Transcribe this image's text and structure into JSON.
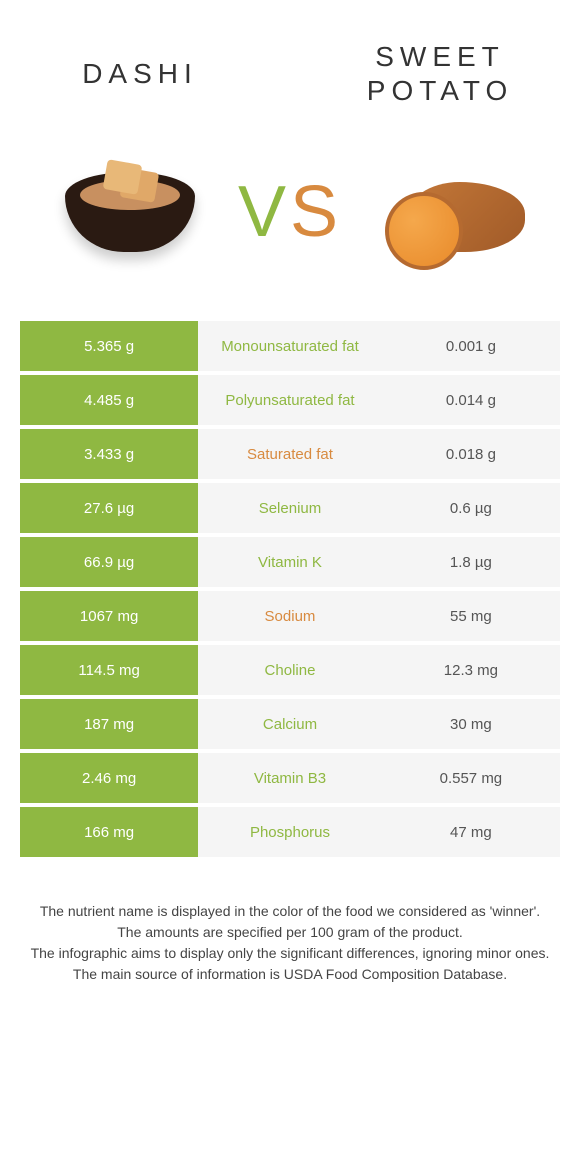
{
  "title_left": "DASHI",
  "title_right": "SWEET POTATO",
  "vs_v": "V",
  "vs_s": "S",
  "colors": {
    "left": "#8fb842",
    "right": "#d88a3f",
    "row_bg": "#f5f5f5",
    "text_dark": "#555555"
  },
  "rows": [
    {
      "left": "5.365 g",
      "name": "Monounsaturated fat",
      "right": "0.001 g",
      "winner": "left"
    },
    {
      "left": "4.485 g",
      "name": "Polyunsaturated fat",
      "right": "0.014 g",
      "winner": "left"
    },
    {
      "left": "3.433 g",
      "name": "Saturated fat",
      "right": "0.018 g",
      "winner": "right"
    },
    {
      "left": "27.6 µg",
      "name": "Selenium",
      "right": "0.6 µg",
      "winner": "left"
    },
    {
      "left": "66.9 µg",
      "name": "Vitamin K",
      "right": "1.8 µg",
      "winner": "left"
    },
    {
      "left": "1067 mg",
      "name": "Sodium",
      "right": "55 mg",
      "winner": "right"
    },
    {
      "left": "114.5 mg",
      "name": "Choline",
      "right": "12.3 mg",
      "winner": "left"
    },
    {
      "left": "187 mg",
      "name": "Calcium",
      "right": "30 mg",
      "winner": "left"
    },
    {
      "left": "2.46 mg",
      "name": "Vitamin B3",
      "right": "0.557 mg",
      "winner": "left"
    },
    {
      "left": "166 mg",
      "name": "Phosphorus",
      "right": "47 mg",
      "winner": "left"
    }
  ],
  "footer": [
    "The nutrient name is displayed in the color of the food we considered as 'winner'.",
    "The amounts are specified per 100 gram of the product.",
    "The infographic aims to display only the significant differences, ignoring minor ones.",
    "The main source of information is USDA Food Composition Database."
  ]
}
